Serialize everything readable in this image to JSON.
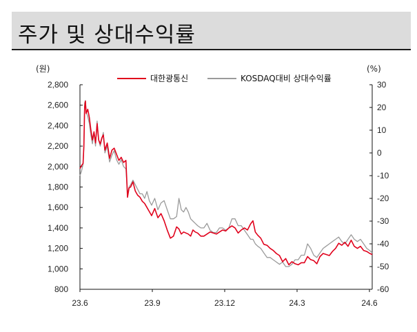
{
  "header": {
    "title": "주가 및 상대수익률"
  },
  "chart_data": {
    "type": "line",
    "title": "주가 및 상대수익률",
    "left_unit": "(원)",
    "right_unit": "(%)",
    "x_ticks": [
      "23.6",
      "23.9",
      "23.12",
      "24.3",
      "24.6"
    ],
    "y_left_ticks": [
      "2,800",
      "2,600",
      "2,400",
      "2,200",
      "2,000",
      "1,800",
      "1,600",
      "1,400",
      "1,200",
      "1,000",
      "800"
    ],
    "y_right_ticks": [
      "30",
      "20",
      "10",
      "0",
      "-10",
      "-20",
      "-30",
      "-40",
      "-50",
      "-60"
    ],
    "ylim_left": [
      800,
      2800
    ],
    "ylim_right": [
      -60,
      30
    ],
    "legend_position": "top-center",
    "x_range": [
      "2023-06-01",
      "2024-06-10"
    ],
    "colors": {
      "price": "#e0001b",
      "relative": "#9a9a9a"
    },
    "series": [
      {
        "name": "대한광통신",
        "axis": "left",
        "color": "#e0001b",
        "x": [
          "2023-06-01",
          "2023-06-03",
          "2023-06-05",
          "2023-06-06",
          "2023-06-07",
          "2023-06-08",
          "2023-06-09",
          "2023-06-11",
          "2023-06-13",
          "2023-06-15",
          "2023-06-17",
          "2023-06-19",
          "2023-06-21",
          "2023-06-23",
          "2023-06-25",
          "2023-06-27",
          "2023-06-29",
          "2023-07-01",
          "2023-07-03",
          "2023-07-06",
          "2023-07-09",
          "2023-07-12",
          "2023-07-15",
          "2023-07-18",
          "2023-07-21",
          "2023-07-24",
          "2023-07-27",
          "2023-07-30",
          "2023-08-01",
          "2023-08-03",
          "2023-08-05",
          "2023-08-08",
          "2023-08-11",
          "2023-08-14",
          "2023-08-17",
          "2023-08-20",
          "2023-08-23",
          "2023-08-26",
          "2023-08-29",
          "2023-09-01",
          "2023-09-05",
          "2023-09-09",
          "2023-09-13",
          "2023-09-17",
          "2023-09-21",
          "2023-09-25",
          "2023-09-29",
          "2023-10-03",
          "2023-10-06",
          "2023-10-09",
          "2023-10-12",
          "2023-10-15",
          "2023-10-18",
          "2023-10-21",
          "2023-10-24",
          "2023-10-27",
          "2023-10-30",
          "2023-11-03",
          "2023-11-07",
          "2023-11-11",
          "2023-11-15",
          "2023-11-19",
          "2023-11-23",
          "2023-11-27",
          "2023-12-01",
          "2023-12-05",
          "2023-12-09",
          "2023-12-13",
          "2023-12-17",
          "2023-12-21",
          "2023-12-25",
          "2023-12-29",
          "2024-01-02",
          "2024-01-06",
          "2024-01-09",
          "2024-01-12",
          "2024-01-15",
          "2024-01-19",
          "2024-01-23",
          "2024-01-27",
          "2024-01-31",
          "2024-02-04",
          "2024-02-08",
          "2024-02-12",
          "2024-02-16",
          "2024-02-20",
          "2024-02-24",
          "2024-02-28",
          "2024-03-03",
          "2024-03-07",
          "2024-03-11",
          "2024-03-15",
          "2024-03-19",
          "2024-03-23",
          "2024-03-27",
          "2024-03-31",
          "2024-04-04",
          "2024-04-08",
          "2024-04-12",
          "2024-04-16",
          "2024-04-20",
          "2024-04-24",
          "2024-04-28",
          "2024-05-02",
          "2024-05-06",
          "2024-05-10",
          "2024-05-14",
          "2024-05-18",
          "2024-05-22",
          "2024-05-26",
          "2024-05-30",
          "2024-06-03",
          "2024-06-07",
          "2024-06-10"
        ],
        "values": [
          1980,
          2010,
          2030,
          2200,
          2580,
          2640,
          2520,
          2560,
          2480,
          2360,
          2260,
          2340,
          2230,
          2420,
          2260,
          2220,
          2280,
          2310,
          2160,
          2230,
          2080,
          2160,
          2180,
          2120,
          2060,
          2090,
          2040,
          2060,
          1700,
          1790,
          1800,
          1850,
          1760,
          1720,
          1700,
          1660,
          1640,
          1600,
          1560,
          1520,
          1590,
          1500,
          1540,
          1470,
          1380,
          1300,
          1320,
          1410,
          1390,
          1340,
          1360,
          1350,
          1340,
          1320,
          1380,
          1360,
          1350,
          1320,
          1320,
          1340,
          1360,
          1350,
          1340,
          1360,
          1380,
          1370,
          1400,
          1420,
          1400,
          1350,
          1380,
          1400,
          1380,
          1440,
          1470,
          1360,
          1330,
          1300,
          1240,
          1230,
          1200,
          1180,
          1150,
          1130,
          1070,
          1100,
          1040,
          1070,
          1050,
          1040,
          1060,
          1060,
          1120,
          1090,
          1080,
          1050,
          1120,
          1150,
          1140,
          1130,
          1170,
          1200,
          1250,
          1230,
          1260,
          1220,
          1280,
          1220,
          1200,
          1220,
          1180,
          1170,
          1150,
          1140
        ]
      },
      {
        "name": "KOSDAQ대비 상대수익률",
        "axis": "right",
        "color": "#9a9a9a",
        "x": [
          "2023-06-01",
          "2023-06-03",
          "2023-06-05",
          "2023-06-06",
          "2023-06-07",
          "2023-06-08",
          "2023-06-09",
          "2023-06-11",
          "2023-06-13",
          "2023-06-15",
          "2023-06-17",
          "2023-06-19",
          "2023-06-21",
          "2023-06-23",
          "2023-06-25",
          "2023-06-27",
          "2023-06-29",
          "2023-07-01",
          "2023-07-03",
          "2023-07-06",
          "2023-07-09",
          "2023-07-12",
          "2023-07-15",
          "2023-07-18",
          "2023-07-21",
          "2023-07-24",
          "2023-07-27",
          "2023-07-30",
          "2023-08-01",
          "2023-08-03",
          "2023-08-05",
          "2023-08-08",
          "2023-08-11",
          "2023-08-14",
          "2023-08-17",
          "2023-08-20",
          "2023-08-23",
          "2023-08-26",
          "2023-08-29",
          "2023-09-01",
          "2023-09-05",
          "2023-09-09",
          "2023-09-13",
          "2023-09-17",
          "2023-09-21",
          "2023-09-25",
          "2023-09-29",
          "2023-10-03",
          "2023-10-06",
          "2023-10-09",
          "2023-10-12",
          "2023-10-15",
          "2023-10-18",
          "2023-10-21",
          "2023-10-24",
          "2023-10-27",
          "2023-10-30",
          "2023-11-03",
          "2023-11-07",
          "2023-11-11",
          "2023-11-15",
          "2023-11-19",
          "2023-11-23",
          "2023-11-27",
          "2023-12-01",
          "2023-12-05",
          "2023-12-09",
          "2023-12-13",
          "2023-12-17",
          "2023-12-21",
          "2023-12-25",
          "2023-12-29",
          "2024-01-02",
          "2024-01-06",
          "2024-01-09",
          "2024-01-12",
          "2024-01-15",
          "2024-01-19",
          "2024-01-23",
          "2024-01-27",
          "2024-01-31",
          "2024-02-04",
          "2024-02-08",
          "2024-02-12",
          "2024-02-16",
          "2024-02-20",
          "2024-02-24",
          "2024-02-28",
          "2024-03-03",
          "2024-03-07",
          "2024-03-11",
          "2024-03-15",
          "2024-03-19",
          "2024-03-23",
          "2024-03-27",
          "2024-03-31",
          "2024-04-04",
          "2024-04-08",
          "2024-04-12",
          "2024-04-16",
          "2024-04-20",
          "2024-04-24",
          "2024-04-28",
          "2024-05-02",
          "2024-05-06",
          "2024-05-10",
          "2024-05-14",
          "2024-05-18",
          "2024-05-22",
          "2024-05-26",
          "2024-05-30",
          "2024-06-03",
          "2024-06-07",
          "2024-06-10"
        ],
        "values": [
          -10,
          -8,
          -5,
          3,
          22,
          23,
          18,
          16,
          13,
          8,
          4,
          9,
          3,
          14,
          6,
          3,
          6,
          9,
          0,
          3,
          -4,
          -1,
          1,
          -3,
          -5,
          -3,
          -6,
          -7,
          -18,
          -15,
          -14,
          -12,
          -14,
          -16,
          -18,
          -18,
          -20,
          -17,
          -21,
          -23,
          -20,
          -25,
          -22,
          -21,
          -25,
          -29,
          -29,
          -28,
          -20,
          -25,
          -26,
          -24,
          -26,
          -29,
          -30,
          -31,
          -32,
          -33,
          -33,
          -31,
          -34,
          -35,
          -35,
          -33,
          -33,
          -34,
          -33,
          -29,
          -29,
          -32,
          -32,
          -34,
          -36,
          -38,
          -38,
          -40,
          -41,
          -42,
          -44,
          -46,
          -46,
          -47,
          -48,
          -49,
          -48,
          -50,
          -50,
          -49,
          -47,
          -47,
          -45,
          -45,
          -40,
          -42,
          -45,
          -46,
          -44,
          -42,
          -41,
          -40,
          -39,
          -38,
          -37,
          -39,
          -40,
          -38,
          -36,
          -38,
          -39,
          -38,
          -40,
          -42,
          -43,
          -44
        ]
      }
    ]
  }
}
